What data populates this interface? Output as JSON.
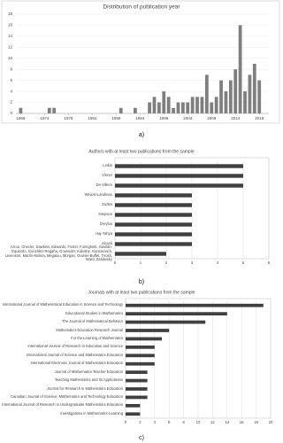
{
  "chart_data": [
    {
      "type": "bar",
      "title": "Distribution of publication year",
      "caption": "a)",
      "x": [
        1969,
        1975,
        1976,
        1990,
        1993,
        1996,
        1997,
        1998,
        1999,
        2000,
        2001,
        2002,
        2003,
        2004,
        2005,
        2006,
        2007,
        2008,
        2009,
        2010,
        2011,
        2012,
        2013,
        2014,
        2015,
        2016,
        2017,
        2018,
        2019
      ],
      "values": [
        1,
        1,
        1,
        1,
        1,
        2,
        3,
        2,
        4,
        3,
        1,
        2,
        2,
        2,
        3,
        3,
        3,
        7,
        2,
        3,
        6,
        4,
        6,
        8,
        16,
        4,
        7,
        9,
        6
      ],
      "color": "#7f7f7f",
      "xlim": [
        1968,
        2021
      ],
      "xticks": [
        1969,
        1974,
        1979,
        1984,
        1989,
        1994,
        1999,
        2004,
        2009,
        2014,
        2019
      ],
      "ylim": [
        0,
        18
      ],
      "yticks": [
        0,
        2,
        4,
        6,
        8,
        10,
        12,
        14,
        16,
        18
      ],
      "grid": true
    },
    {
      "type": "hbar",
      "title": "Authors with at least two publications from the sample",
      "caption": "b)",
      "categories": [
        "Leikin",
        "Vinner",
        "De Villiers",
        "Winicki-Landman",
        "Zazkis",
        "Simpson",
        "Dreyfus",
        "Haj-Yahya",
        "Alcock",
        "Azrou, Checler, Dawkins, Edwards, Foster, Furinghetti, Gavilán-Izquierdo, González-Regaña, Govender, Kidoshe, Kontorovich, Levenson, Martín-Molina, Megalou, Morgan, Ouvrier-Buffet, Tirosh, Ward, Zaslavsky"
      ],
      "values": [
        5,
        5,
        5,
        3,
        3,
        3,
        3,
        3,
        3,
        2
      ],
      "color": "#404040",
      "xlim": [
        0,
        6
      ],
      "xticks": [
        0,
        1,
        2,
        3,
        4,
        5,
        6
      ],
      "grid": true
    },
    {
      "type": "hbar",
      "title": "Journals with at least two publications from the sample",
      "caption": "c)",
      "categories": [
        "International Journal of Mathematical Education in Science and Technology",
        "Educational Studies in Mathematics",
        "The Journal of Mathematical Behavior",
        "Mathematics Education Research Journal",
        "For the Learning of Mathematics",
        "International Journal of Research in Education and Science",
        "International Journal of Science and Mathematics Education",
        "International Electronic Journal of Mathematics Education",
        "Journal of Mathematics Teacher Education",
        "Teaching Mathematics and Its Applications",
        "Journal for Research in Mathematics Education",
        "Canadian Journal of Science, Mathematics and Technology Education",
        "International Journal of Research in Undergraduate Mathematics Education",
        "Investigations in Mathematics Learning"
      ],
      "values": [
        19,
        14,
        11,
        6,
        5,
        4,
        4,
        4,
        3,
        3,
        3,
        3,
        2,
        2
      ],
      "color": "#404040",
      "xlim": [
        0,
        20
      ],
      "xticks": [
        0,
        2,
        4,
        6,
        8,
        10,
        12,
        14,
        16,
        18,
        20
      ],
      "grid": true
    }
  ]
}
